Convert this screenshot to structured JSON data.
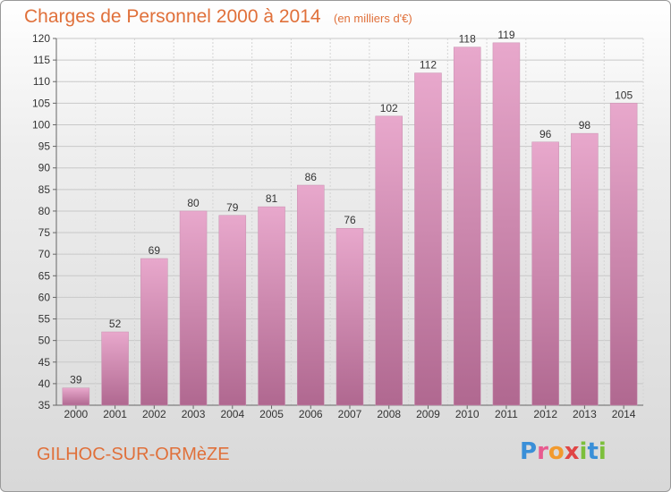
{
  "title": "Charges de Personnel 2000 à 2014",
  "subtitle": "(en milliers d'€)",
  "commune": "GILHOC-SUR-ORMèZE",
  "logo": {
    "letters": [
      "P",
      "r",
      "o",
      "x",
      "i",
      "t",
      "i"
    ],
    "colors": [
      "#3a8fd8",
      "#e85a8f",
      "#f29a2e",
      "#e04545",
      "#7cbf3c",
      "#3a8fd8",
      "#7cbf3c"
    ]
  },
  "chart_data": {
    "type": "bar",
    "title": "Charges de Personnel 2000 à 2014",
    "subtitle": "(en milliers d'€)",
    "categories": [
      "2000",
      "2001",
      "2002",
      "2003",
      "2004",
      "2005",
      "2006",
      "2007",
      "2008",
      "2009",
      "2010",
      "2011",
      "2012",
      "2013",
      "2014"
    ],
    "values": [
      39,
      52,
      69,
      80,
      79,
      81,
      86,
      76,
      102,
      112,
      118,
      119,
      96,
      98,
      105
    ],
    "ylim": [
      35,
      120
    ],
    "yticks": [
      35,
      40,
      45,
      50,
      55,
      60,
      65,
      70,
      75,
      80,
      85,
      90,
      95,
      100,
      105,
      110,
      115,
      120
    ],
    "grid": true,
    "bar_color_top": "#e8a8cc",
    "bar_color_bottom": "#b06890"
  }
}
